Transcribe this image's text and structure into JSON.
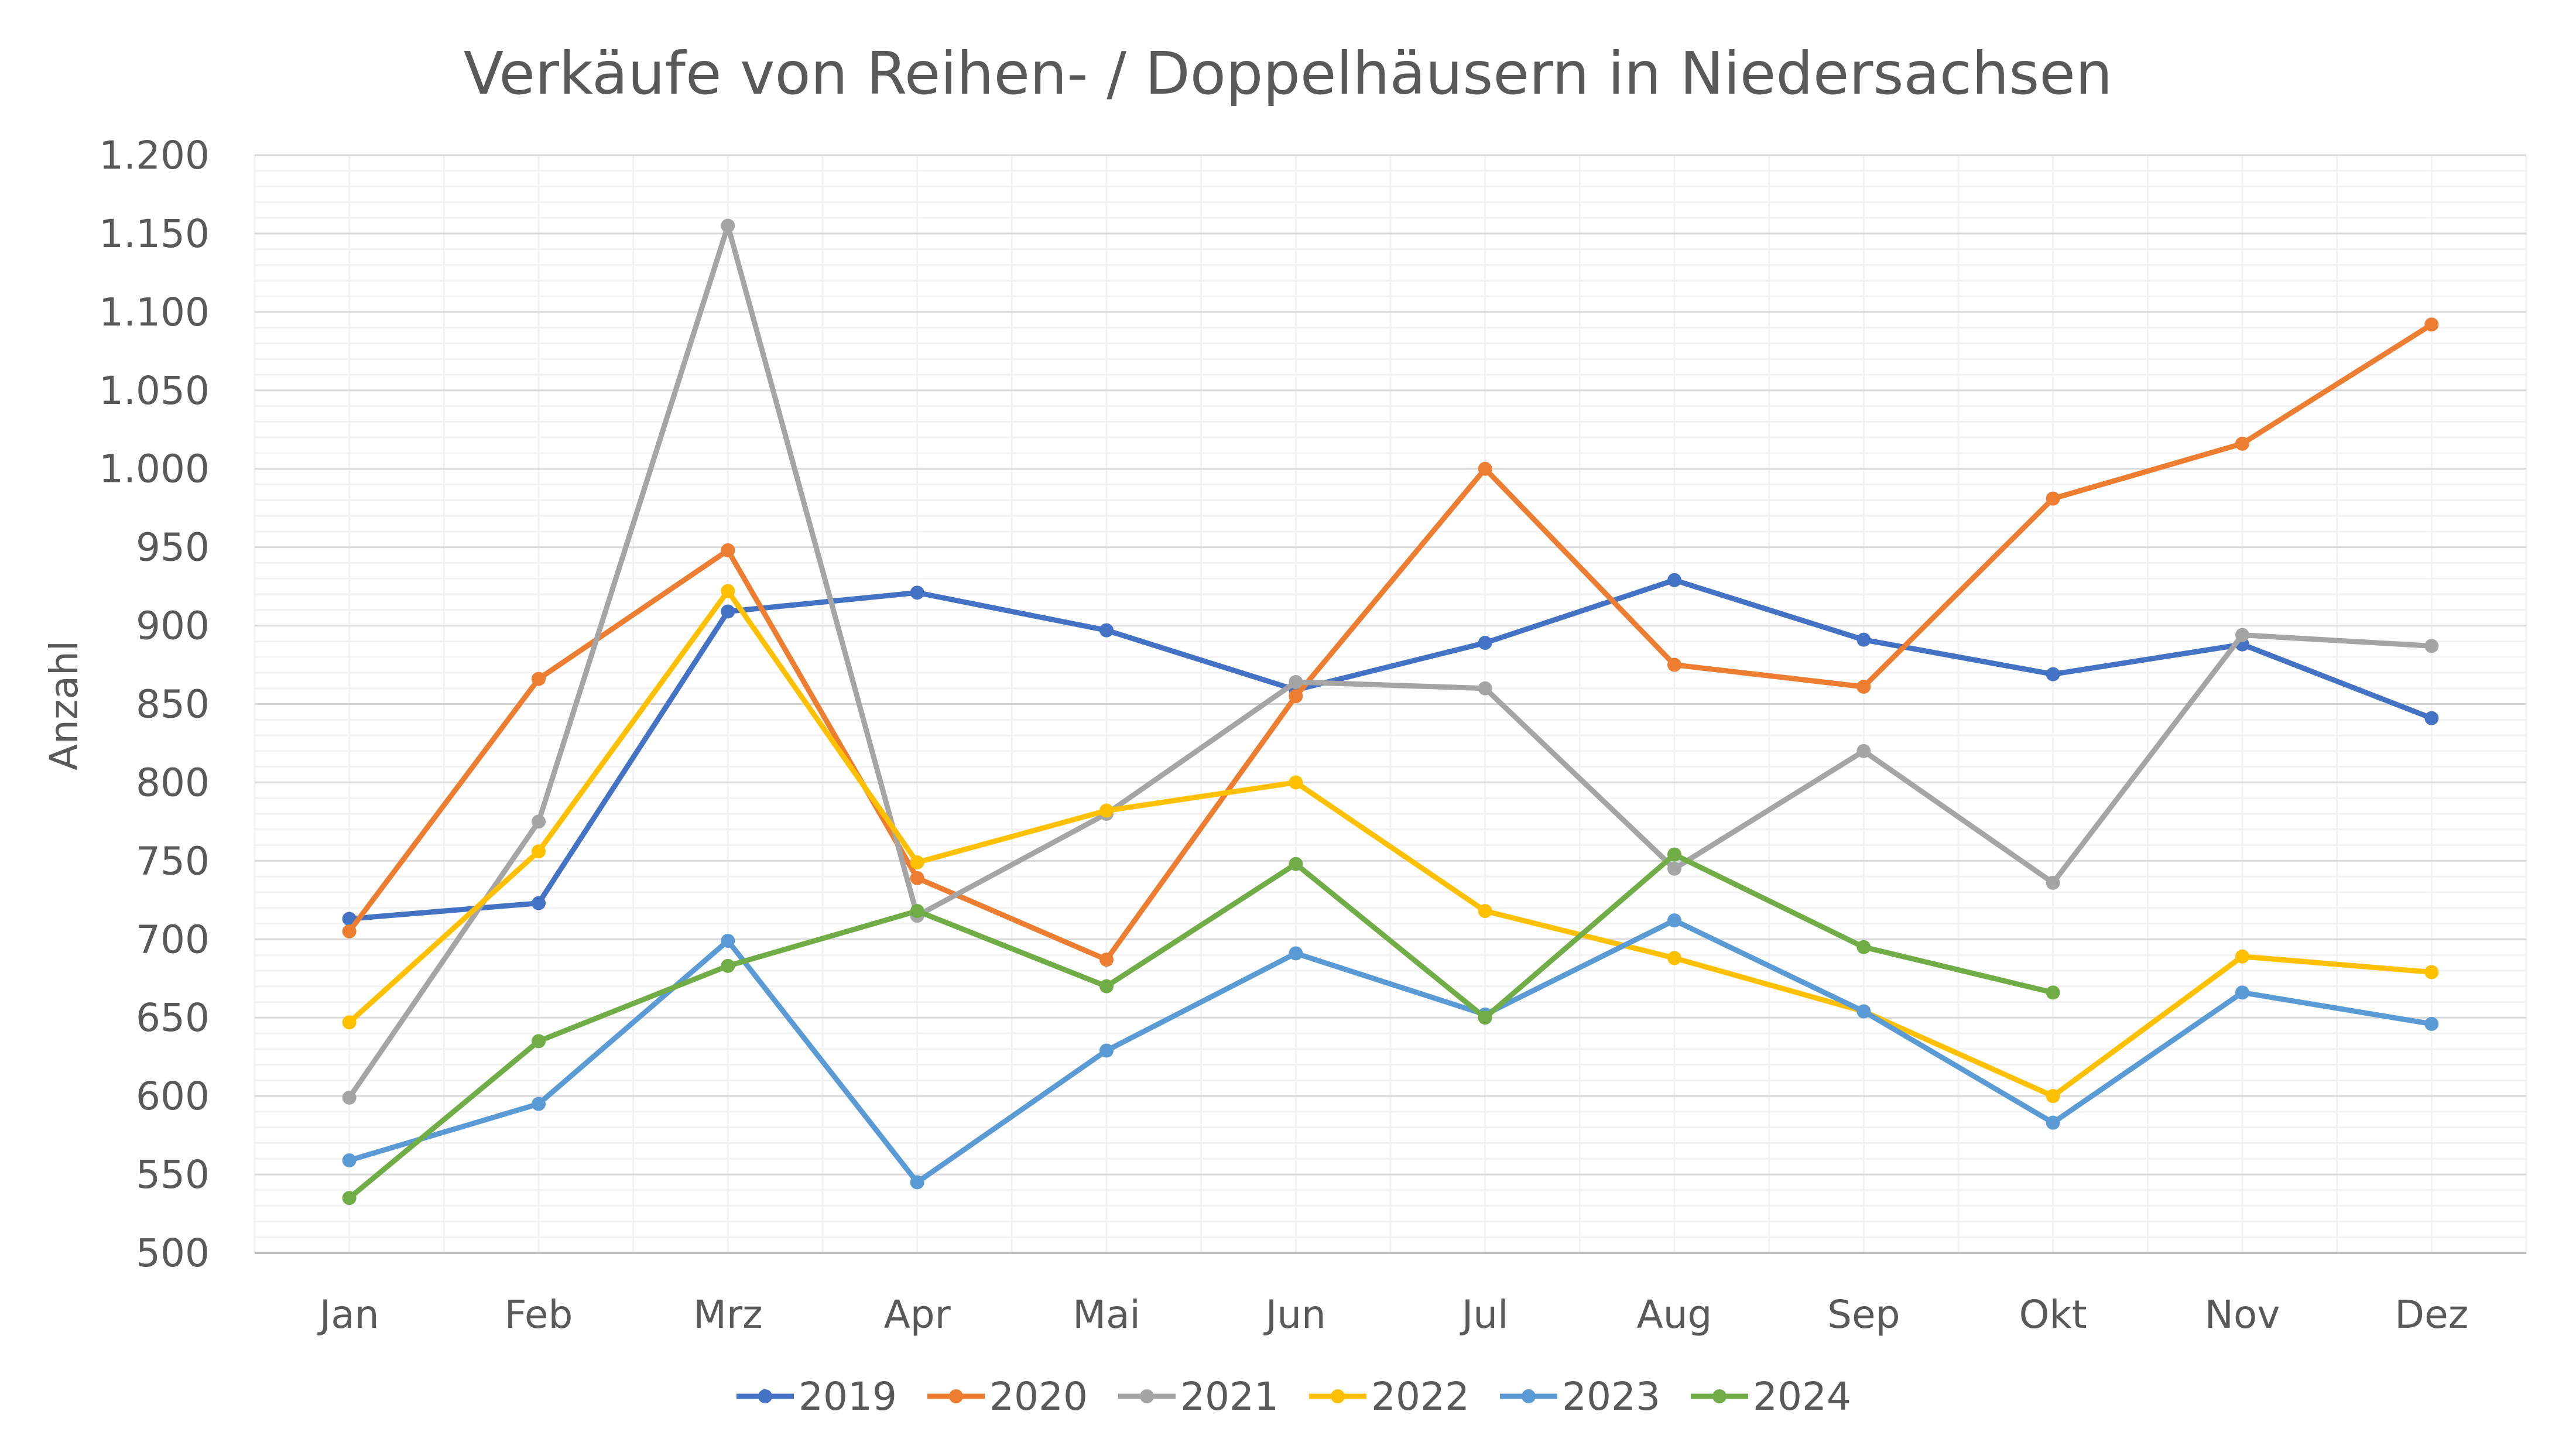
{
  "chart_data": {
    "type": "line",
    "title": "Verkäufe von Reihen- / Doppelhäusern in Niedersachsen",
    "xlabel": "",
    "ylabel": "Anzahl",
    "ylim": [
      500,
      1200
    ],
    "ytick_step": 50,
    "ytick_labels": [
      "500",
      "550",
      "600",
      "650",
      "700",
      "750",
      "800",
      "850",
      "900",
      "950",
      "1.000",
      "1.050",
      "1.100",
      "1.150",
      "1.200"
    ],
    "grid": true,
    "legend_position": "bottom",
    "categories": [
      "Jan",
      "Feb",
      "Mrz",
      "Apr",
      "Mai",
      "Jun",
      "Jul",
      "Aug",
      "Sep",
      "Okt",
      "Nov",
      "Dez"
    ],
    "series": [
      {
        "name": "2019",
        "color": "#4472C4",
        "values": [
          713,
          723,
          909,
          921,
          897,
          859,
          889,
          929,
          891,
          869,
          888,
          841
        ]
      },
      {
        "name": "2020",
        "color": "#ED7D31",
        "values": [
          705,
          866,
          948,
          739,
          687,
          855,
          1000,
          875,
          861,
          981,
          1016,
          1092
        ]
      },
      {
        "name": "2021",
        "color": "#A5A5A5",
        "values": [
          599,
          775,
          1155,
          715,
          780,
          864,
          860,
          745,
          820,
          736,
          894,
          887
        ]
      },
      {
        "name": "2022",
        "color": "#FFC000",
        "values": [
          647,
          756,
          922,
          749,
          782,
          800,
          718,
          688,
          654,
          600,
          689,
          679
        ]
      },
      {
        "name": "2023",
        "color": "#5B9BD5",
        "values": [
          559,
          595,
          699,
          545,
          629,
          691,
          652,
          712,
          654,
          583,
          666,
          646
        ]
      },
      {
        "name": "2024",
        "color": "#70AD47",
        "values": [
          535,
          635,
          683,
          718,
          670,
          748,
          650,
          754,
          695,
          666,
          null,
          null
        ]
      }
    ]
  }
}
